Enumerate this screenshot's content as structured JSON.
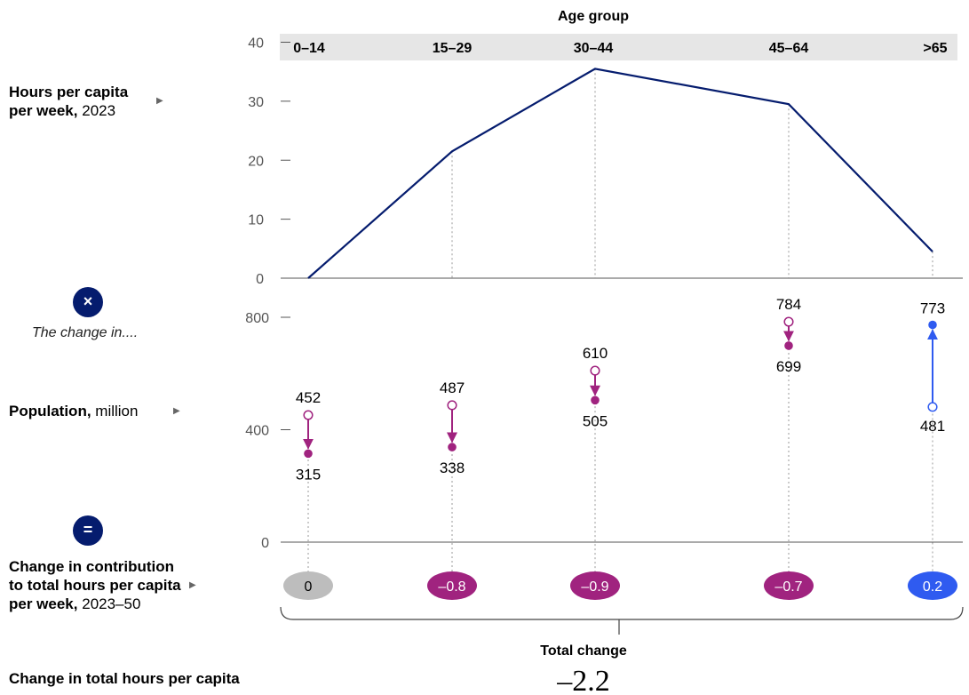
{
  "header": {
    "title": "Age group"
  },
  "left_labels": {
    "hours_bold": "Hours per capita per week,",
    "hours_line1": "Hours per capita",
    "hours_line2_bold": "per week,",
    "hours_year": "2023",
    "times_symbol": "×",
    "change_caption": "The change in....",
    "pop_bold": "Population,",
    "pop_unit": "million",
    "equals_symbol": "=",
    "contrib_line1": "Change in contribution",
    "contrib_line2": "to total hours per capita",
    "contrib_line3_bold": "per week,",
    "contrib_years": "2023–50",
    "total_hours_label": "Change in total hours per capita"
  },
  "total": {
    "label": "Total change",
    "value": "–2.2"
  },
  "colors": {
    "navy": "#051c6e",
    "magenta": "#a0237f",
    "blue": "#2f5bf0",
    "gray_oval": "#bdbdbd",
    "axis": "#555555",
    "header_band": "#e6e6e6"
  },
  "chart_data": [
    {
      "type": "line",
      "categories": [
        "0–14",
        "15–29",
        "30–44",
        "45–64",
        ">65"
      ],
      "ylim": [
        0,
        40
      ],
      "yticks": [
        0,
        10,
        20,
        30,
        40
      ],
      "series": [
        {
          "values": [
            0,
            21.5,
            35.5,
            29.5,
            4.5
          ]
        }
      ]
    },
    {
      "type": "scatter",
      "categories": [
        "0–14",
        "15–29",
        "30–44",
        "45–64",
        ">65"
      ],
      "ylim": [
        0,
        800
      ],
      "yticks": [
        0,
        400,
        800
      ],
      "from_values": [
        452,
        487,
        610,
        784,
        481
      ],
      "to_values": [
        315,
        338,
        505,
        699,
        773
      ],
      "from_labels": [
        "452",
        "487",
        "610",
        "784",
        "481"
      ],
      "to_labels": [
        "315",
        "338",
        "505",
        "699",
        "773"
      ]
    },
    {
      "type": "table",
      "categories": [
        "0–14",
        "15–29",
        "30–44",
        "45–64",
        ">65"
      ],
      "values": [
        0,
        -0.8,
        -0.9,
        -0.7,
        0.2
      ],
      "labels": [
        "0",
        "–0.8",
        "–0.9",
        "–0.7",
        "0.2"
      ]
    }
  ]
}
